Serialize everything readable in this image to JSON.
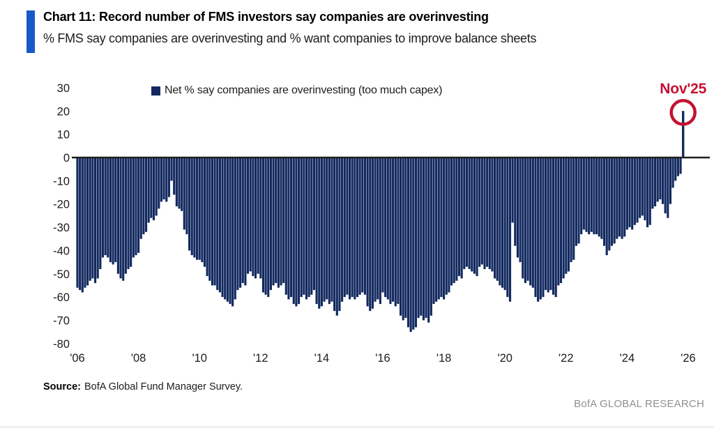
{
  "header": {
    "title": "Chart 11: Record number of FMS investors say companies are overinvesting",
    "subtitle": "% FMS say companies are overinvesting and % want companies to improve balance sheets",
    "accent_color": "#165ac9"
  },
  "legend": {
    "label": "Net % say companies are overinvesting (too much capex)",
    "marker_color": "#12295f"
  },
  "annotation": {
    "label": "Nov'25",
    "color": "#c41232"
  },
  "footer": {
    "source_label": "Source:",
    "source_text": "BofA Global Fund Manager Survey.",
    "branding": "BofA GLOBAL RESEARCH"
  },
  "chart_data": {
    "type": "bar",
    "title": "Net % say companies are overinvesting (too much capex)",
    "xlabel": "",
    "ylabel": "",
    "frequency": "monthly",
    "start": "2006-01",
    "end": "2025-11",
    "ylim": [
      -80,
      30
    ],
    "grid": false,
    "zero_line": true,
    "legend_position": "top-left-inside",
    "bar_color": "#12295f",
    "axis_color": "#1e1e1e",
    "y_ticks": [
      30,
      20,
      10,
      0,
      -10,
      -20,
      -30,
      -40,
      -50,
      -60,
      -70,
      -80
    ],
    "x_tick_labels": [
      "'06",
      "'08",
      "'10",
      "'12",
      "'14",
      "'16",
      "'18",
      "'20",
      "'22",
      "'24",
      "'26"
    ],
    "x_tick_years": [
      2006,
      2008,
      2010,
      2012,
      2014,
      2016,
      2018,
      2020,
      2022,
      2024,
      2026
    ],
    "values": [
      -56,
      -57,
      -58,
      -56,
      -55,
      -53,
      -52,
      -54,
      -52,
      -48,
      -43,
      -42,
      -43,
      -45,
      -46,
      -45,
      -50,
      -52,
      -53,
      -50,
      -48,
      -47,
      -43,
      -42,
      -41,
      -35,
      -33,
      -32,
      -28,
      -26,
      -27,
      -25,
      -22,
      -19,
      -18,
      -19,
      -17,
      -10,
      -16,
      -21,
      -22,
      -23,
      -31,
      -33,
      -40,
      -42,
      -43,
      -44,
      -44,
      -45,
      -47,
      -51,
      -53,
      -55,
      -55,
      -57,
      -58,
      -60,
      -61,
      -62,
      -63,
      -64,
      -61,
      -57,
      -56,
      -54,
      -55,
      -50,
      -49,
      -51,
      -52,
      -50,
      -52,
      -58,
      -59,
      -60,
      -57,
      -55,
      -54,
      -56,
      -55,
      -54,
      -59,
      -61,
      -60,
      -63,
      -64,
      -63,
      -60,
      -59,
      -61,
      -60,
      -59,
      -57,
      -63,
      -65,
      -64,
      -62,
      -61,
      -63,
      -62,
      -66,
      -68,
      -66,
      -62,
      -60,
      -59,
      -61,
      -60,
      -61,
      -60,
      -59,
      -58,
      -59,
      -64,
      -66,
      -65,
      -62,
      -61,
      -63,
      -58,
      -60,
      -61,
      -63,
      -62,
      -64,
      -63,
      -68,
      -70,
      -69,
      -73,
      -75,
      -74,
      -73,
      -69,
      -68,
      -70,
      -69,
      -71,
      -68,
      -63,
      -62,
      -61,
      -60,
      -61,
      -59,
      -58,
      -55,
      -54,
      -53,
      -51,
      -52,
      -48,
      -47,
      -48,
      -49,
      -50,
      -51,
      -47,
      -46,
      -48,
      -47,
      -48,
      -49,
      -52,
      -53,
      -55,
      -56,
      -57,
      -60,
      -62,
      -28,
      -38,
      -43,
      -45,
      -52,
      -54,
      -53,
      -55,
      -56,
      -60,
      -62,
      -61,
      -60,
      -57,
      -58,
      -57,
      -59,
      -60,
      -55,
      -54,
      -52,
      -50,
      -49,
      -45,
      -44,
      -38,
      -37,
      -33,
      -31,
      -32,
      -33,
      -32,
      -33,
      -33,
      -34,
      -35,
      -38,
      -42,
      -40,
      -38,
      -37,
      -35,
      -34,
      -35,
      -34,
      -31,
      -30,
      -31,
      -29,
      -28,
      -26,
      -25,
      -27,
      -30,
      -29,
      -22,
      -21,
      -19,
      -18,
      -20,
      -24,
      -26,
      -20,
      -13,
      -10,
      -8,
      -7,
      20
    ],
    "highlight": {
      "label": "Nov'25",
      "index": 238,
      "value": 20,
      "circle_color": "#c41232"
    }
  }
}
